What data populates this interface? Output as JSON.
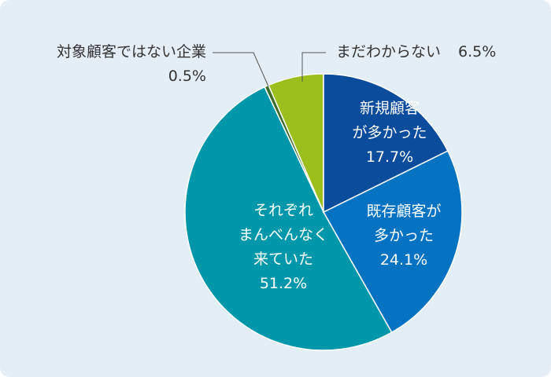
{
  "chart_data": {
    "type": "pie",
    "categories": [
      "新規顧客\nが多かった",
      "既存顧客が\n多かった",
      "それぞれ\nまんべんなく\n来ていた",
      "対象顧客ではない企業",
      "まだわからない"
    ],
    "values": [
      17.7,
      24.1,
      51.2,
      0.5,
      6.5
    ],
    "value_labels": [
      "17.7%",
      "24.1%",
      "51.2%",
      "0.5%",
      "6.5%"
    ],
    "colors": [
      "#0b4c9c",
      "#0572c2",
      "#0097aa",
      "#3d6b2a",
      "#9dbf1e"
    ]
  }
}
